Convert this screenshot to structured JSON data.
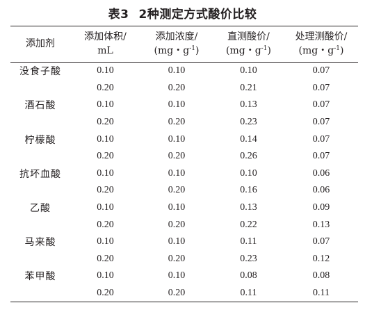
{
  "caption": {
    "number": "表3",
    "title": "2种测定方式酸价比较"
  },
  "headers": [
    {
      "line1": "添加剂",
      "line2": "",
      "sup": ""
    },
    {
      "line1": "添加体积/",
      "line2": "mL",
      "sup": ""
    },
    {
      "line1": "添加浓度/",
      "line2": "(mg・g",
      "sup": "-1",
      "close": ")"
    },
    {
      "line1": "直测酸价/",
      "line2": "(mg・g",
      "sup": "-1",
      "close": ")"
    },
    {
      "line1": "处理测酸价/",
      "line2": "(mg・g",
      "sup": "-1",
      "close": ")"
    }
  ],
  "rows": [
    {
      "additive": "没食子酸",
      "volume": "0.10",
      "concentration": "0.10",
      "direct": "0.10",
      "treated": "0.07"
    },
    {
      "additive": "",
      "volume": "0.20",
      "concentration": "0.20",
      "direct": "0.21",
      "treated": "0.07"
    },
    {
      "additive": "酒石酸",
      "volume": "0.10",
      "concentration": "0.10",
      "direct": "0.13",
      "treated": "0.07"
    },
    {
      "additive": "",
      "volume": "0.20",
      "concentration": "0.20",
      "direct": "0.23",
      "treated": "0.07"
    },
    {
      "additive": "柠檬酸",
      "volume": "0.10",
      "concentration": "0.10",
      "direct": "0.14",
      "treated": "0.07"
    },
    {
      "additive": "",
      "volume": "0.20",
      "concentration": "0.20",
      "direct": "0.26",
      "treated": "0.07"
    },
    {
      "additive": "抗坏血酸",
      "volume": "0.10",
      "concentration": "0.10",
      "direct": "0.10",
      "treated": "0.06"
    },
    {
      "additive": "",
      "volume": "0.20",
      "concentration": "0.20",
      "direct": "0.16",
      "treated": "0.06"
    },
    {
      "additive": "乙酸",
      "volume": "0.10",
      "concentration": "0.10",
      "direct": "0.13",
      "treated": "0.09"
    },
    {
      "additive": "",
      "volume": "0.20",
      "concentration": "0.20",
      "direct": "0.22",
      "treated": "0.13"
    },
    {
      "additive": "马来酸",
      "volume": "0.10",
      "concentration": "0.10",
      "direct": "0.11",
      "treated": "0.07"
    },
    {
      "additive": "",
      "volume": "0.20",
      "concentration": "0.20",
      "direct": "0.23",
      "treated": "0.12"
    },
    {
      "additive": "苯甲酸",
      "volume": "0.10",
      "concentration": "0.10",
      "direct": "0.08",
      "treated": "0.08"
    },
    {
      "additive": "",
      "volume": "0.20",
      "concentration": "0.20",
      "direct": "0.11",
      "treated": "0.11"
    }
  ]
}
